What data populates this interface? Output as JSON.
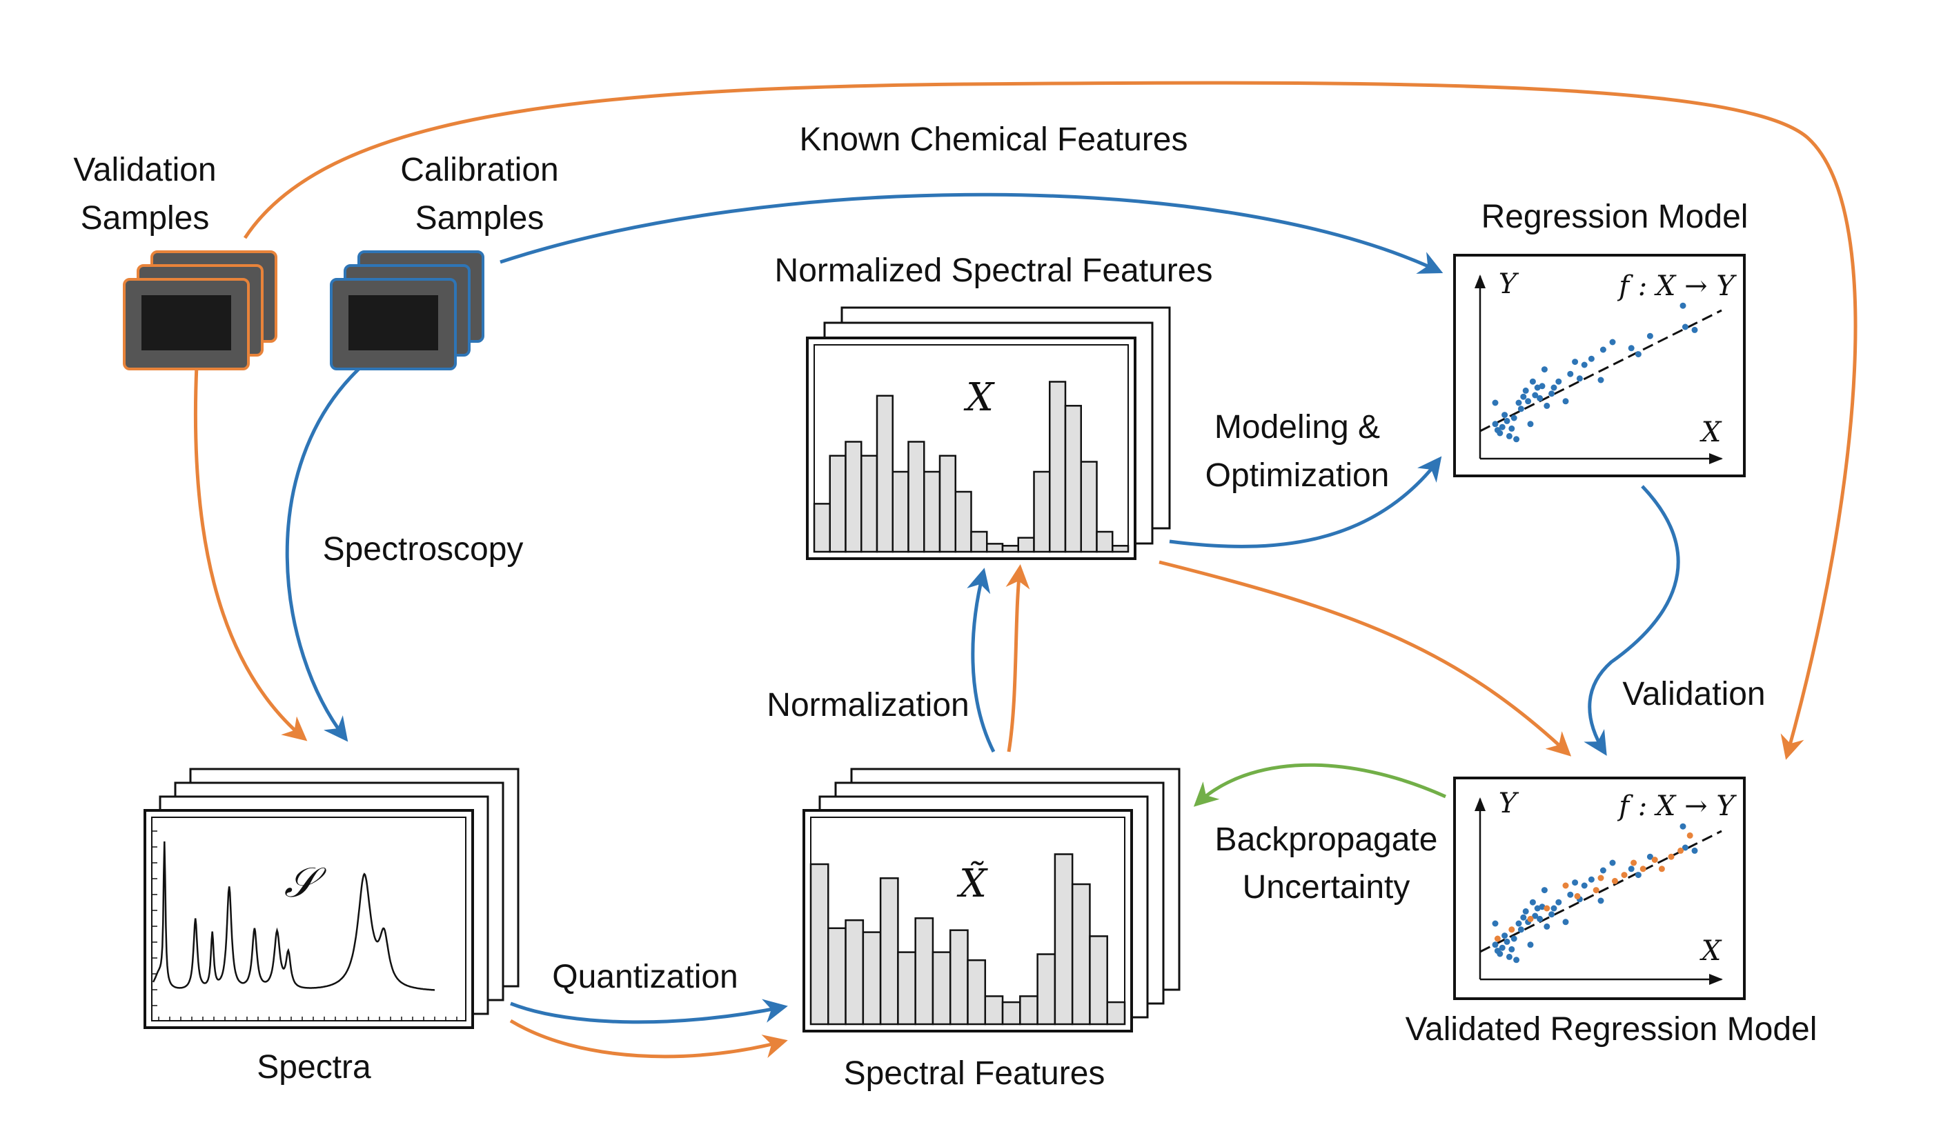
{
  "colors": {
    "orange": "#E8833A",
    "blue": "#2E75B6",
    "green": "#72AF48",
    "bar_fill": "#E0E0E0",
    "sample_dark": "#1A1A1A",
    "sample_body": "#555555"
  },
  "labels": {
    "validation_samples": [
      "Validation",
      "Samples"
    ],
    "calibration_samples": [
      "Calibration",
      "Samples"
    ],
    "known_chemical_features": "Known Chemical Features",
    "regression_model": "Regression Model",
    "normalized_spectral_features": "Normalized Spectral Features",
    "modeling_optimization": [
      "Modeling &",
      "Optimization"
    ],
    "spectroscopy": "Spectroscopy",
    "normalization": "Normalization",
    "validation": "Validation",
    "backpropagate_uncertainty": [
      "Backpropagate",
      "Uncertainty"
    ],
    "quantization": "Quantization",
    "spectra": "Spectra",
    "spectral_features": "Spectral Features",
    "validated_regression_model": "Validated Regression Model"
  },
  "math": {
    "spectra_symbol": "𝒮",
    "features_symbol": "X̃",
    "normalized_symbol": "X",
    "axis_y": "Y",
    "axis_x": "X",
    "function": "f : X → Y"
  },
  "histograms": {
    "normalized": [
      0.24,
      0.48,
      0.55,
      0.48,
      0.78,
      0.4,
      0.55,
      0.4,
      0.48,
      0.3,
      0.1,
      0.04,
      0.03,
      0.07,
      0.4,
      0.85,
      0.73,
      0.45,
      0.1,
      0.03
    ],
    "quantized": [
      0.8,
      0.48,
      0.52,
      0.46,
      0.73,
      0.36,
      0.53,
      0.36,
      0.47,
      0.32,
      0.14,
      0.11,
      0.14,
      0.35,
      0.85,
      0.7,
      0.44,
      0.11
    ]
  },
  "scatter": {
    "calibration": [
      [
        0.05,
        0.16
      ],
      [
        0.06,
        0.12
      ],
      [
        0.07,
        0.1
      ],
      [
        0.08,
        0.14
      ],
      [
        0.1,
        0.18
      ],
      [
        0.11,
        0.08
      ],
      [
        0.12,
        0.13
      ],
      [
        0.13,
        0.2
      ],
      [
        0.14,
        0.06
      ],
      [
        0.15,
        0.3
      ],
      [
        0.16,
        0.26
      ],
      [
        0.17,
        0.34
      ],
      [
        0.18,
        0.38
      ],
      [
        0.19,
        0.31
      ],
      [
        0.2,
        0.16
      ],
      [
        0.21,
        0.44
      ],
      [
        0.22,
        0.35
      ],
      [
        0.23,
        0.4
      ],
      [
        0.24,
        0.33
      ],
      [
        0.25,
        0.41
      ],
      [
        0.27,
        0.28
      ],
      [
        0.29,
        0.36
      ],
      [
        0.3,
        0.4
      ],
      [
        0.32,
        0.44
      ],
      [
        0.35,
        0.31
      ],
      [
        0.37,
        0.49
      ],
      [
        0.39,
        0.57
      ],
      [
        0.41,
        0.46
      ],
      [
        0.43,
        0.55
      ],
      [
        0.46,
        0.59
      ],
      [
        0.5,
        0.45
      ],
      [
        0.51,
        0.65
      ],
      [
        0.55,
        0.7
      ],
      [
        0.63,
        0.66
      ],
      [
        0.66,
        0.62
      ],
      [
        0.71,
        0.74
      ],
      [
        0.85,
        0.94
      ],
      [
        0.86,
        0.8
      ],
      [
        0.9,
        0.78
      ],
      [
        0.26,
        0.52
      ],
      [
        0.05,
        0.3
      ],
      [
        0.09,
        0.22
      ]
    ],
    "validation": [
      [
        0.06,
        0.2
      ],
      [
        0.12,
        0.26
      ],
      [
        0.2,
        0.33
      ],
      [
        0.27,
        0.4
      ],
      [
        0.4,
        0.48
      ],
      [
        0.48,
        0.52
      ],
      [
        0.56,
        0.58
      ],
      [
        0.6,
        0.62
      ],
      [
        0.64,
        0.7
      ],
      [
        0.68,
        0.66
      ],
      [
        0.73,
        0.72
      ],
      [
        0.76,
        0.66
      ],
      [
        0.8,
        0.74
      ],
      [
        0.84,
        0.78
      ],
      [
        0.88,
        0.88
      ],
      [
        0.35,
        0.55
      ],
      [
        0.5,
        0.6
      ]
    ]
  }
}
